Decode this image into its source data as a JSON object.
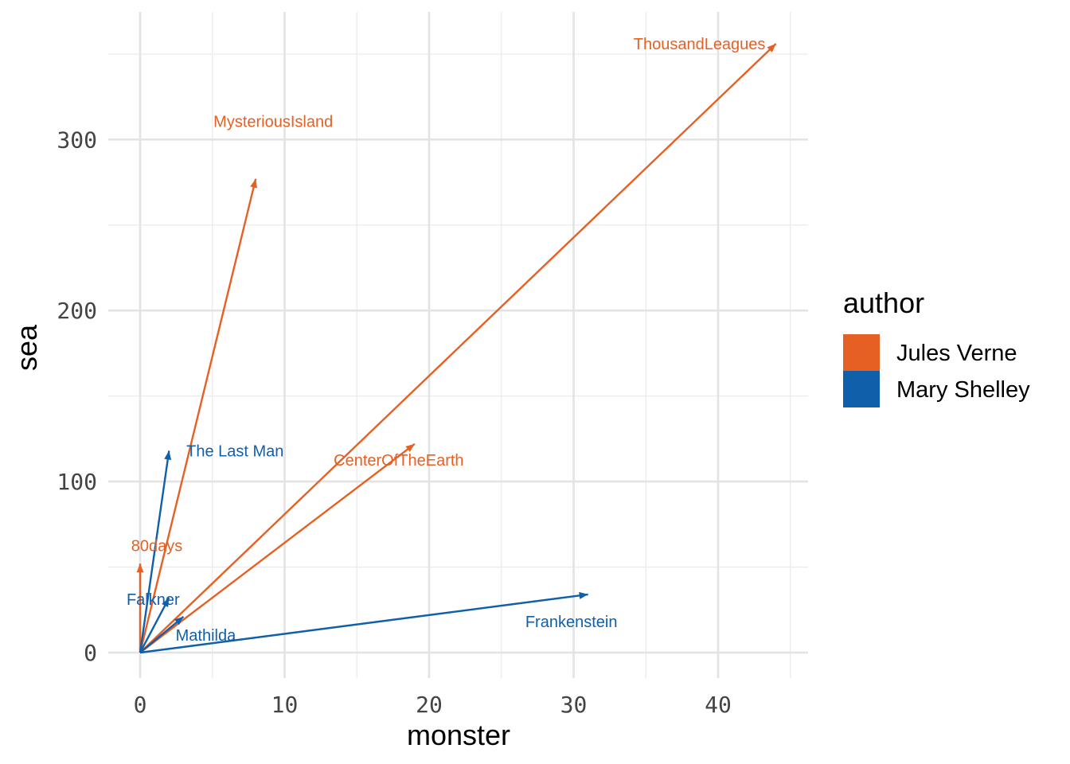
{
  "chart_data": {
    "type": "line",
    "subtype": "arrows-from-origin",
    "title": "",
    "xlabel": "monster",
    "ylabel": "sea",
    "xlim": [
      -2,
      46
    ],
    "ylim": [
      -15,
      370
    ],
    "x_ticks": [
      0,
      10,
      20,
      30,
      40
    ],
    "y_ticks": [
      0,
      100,
      200,
      300
    ],
    "x_tick_labels": [
      "0",
      "10",
      "20",
      "30",
      "40"
    ],
    "y_tick_labels": [
      "0",
      "100",
      "200",
      "300"
    ],
    "grid": true,
    "legend": {
      "title": "author",
      "position": "right",
      "entries": [
        {
          "name": "Jules Verne",
          "color": "#E66024"
        },
        {
          "name": "Mary Shelley",
          "color": "#0F5FAB"
        }
      ]
    },
    "series": [
      {
        "name": "ThousandLeagues",
        "author": "Jules Verne",
        "x": 44,
        "y": 356,
        "color": "#E66024"
      },
      {
        "name": "MysteriousIsland",
        "author": "Jules Verne",
        "x": 8,
        "y": 277,
        "color": "#E66024"
      },
      {
        "name": "CenterOfTheEarth",
        "author": "Jules Verne",
        "x": 19,
        "y": 122,
        "color": "#E66024"
      },
      {
        "name": "80days",
        "author": "Jules Verne",
        "x": 0,
        "y": 52,
        "color": "#E66024"
      },
      {
        "name": "The Last Man",
        "author": "Mary Shelley",
        "x": 2,
        "y": 118,
        "color": "#0F5FAB"
      },
      {
        "name": "Falkner",
        "author": "Mary Shelley",
        "x": 2,
        "y": 32,
        "color": "#0F5FAB"
      },
      {
        "name": "Mathilda",
        "author": "Mary Shelley",
        "x": 3,
        "y": 21,
        "color": "#0F5FAB"
      },
      {
        "name": "Frankenstein",
        "author": "Mary Shelley",
        "x": 31,
        "y": 34,
        "color": "#0F5FAB"
      }
    ]
  }
}
